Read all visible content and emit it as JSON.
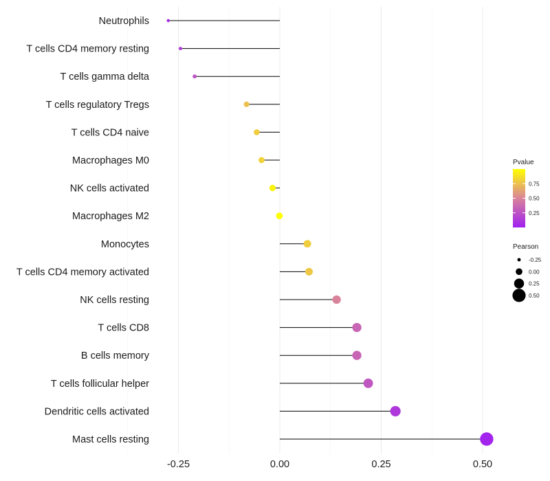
{
  "chart_data": {
    "type": "lollipop",
    "title": "",
    "xlabel": "",
    "ylabel": "",
    "xlim": [
      -0.3,
      0.52
    ],
    "xticks": [
      -0.25,
      0.0,
      0.25,
      0.5
    ],
    "xtick_labels": [
      "-0.25",
      "0.00",
      "0.25",
      "0.50"
    ],
    "grid": true,
    "categories": [
      "Neutrophils",
      "T cells CD4 memory resting",
      "T cells gamma delta",
      "T cells regulatory  Tregs",
      "T cells CD4 naive",
      "Macrophages M0",
      "NK cells activated",
      "Macrophages M2",
      "Monocytes",
      "T cells CD4 memory activated",
      "NK cells resting",
      "T cells CD8",
      "B cells memory",
      "T cells follicular helper",
      "Dendritic cells activated",
      "Mast cells resting"
    ],
    "pearson": [
      -0.275,
      -0.245,
      -0.21,
      -0.082,
      -0.057,
      -0.045,
      -0.018,
      -0.001,
      0.068,
      0.072,
      0.14,
      0.19,
      0.19,
      0.218,
      0.285,
      0.51
    ],
    "pvalue": [
      0.05,
      0.15,
      0.25,
      0.75,
      0.8,
      0.82,
      0.95,
      1.0,
      0.8,
      0.78,
      0.5,
      0.35,
      0.35,
      0.28,
      0.12,
      0.02
    ],
    "legend": {
      "position": "right",
      "pvalue": {
        "title": "Pvalue",
        "labels": [
          "0.75",
          "0.50",
          "0.25"
        ],
        "values": [
          0.75,
          0.5,
          0.25
        ],
        "range": [
          0.0,
          1.0
        ],
        "color_low": "#a020f0",
        "color_mid": "#d9839b",
        "color_high": "#ffff00"
      },
      "pearson": {
        "title": "Pearson",
        "labels": [
          "-0.25",
          "0.00",
          "0.25",
          "0.50"
        ],
        "values": [
          -0.25,
          0.0,
          0.25,
          0.5
        ]
      }
    }
  }
}
